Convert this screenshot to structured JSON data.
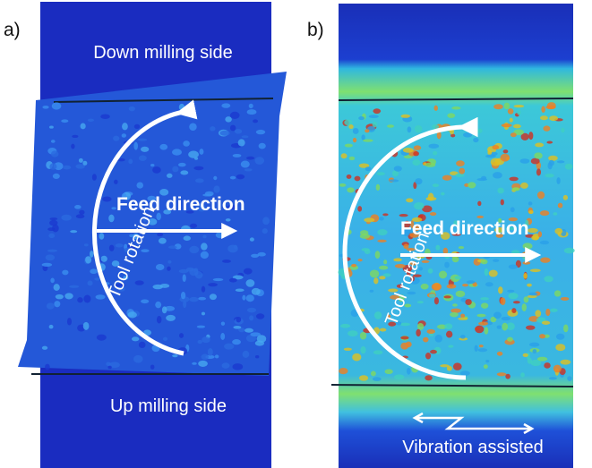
{
  "panels": [
    {
      "label": "a)",
      "top_label": "Down milling side",
      "rotation_label": "Tool rotation",
      "feed_label": "Feed direction",
      "bottom_label": "Up milling side"
    },
    {
      "label": "b)",
      "rotation_label": "Tool rotation",
      "feed_label": "Feed direction",
      "bottom_label": "Vibration assisted"
    }
  ]
}
